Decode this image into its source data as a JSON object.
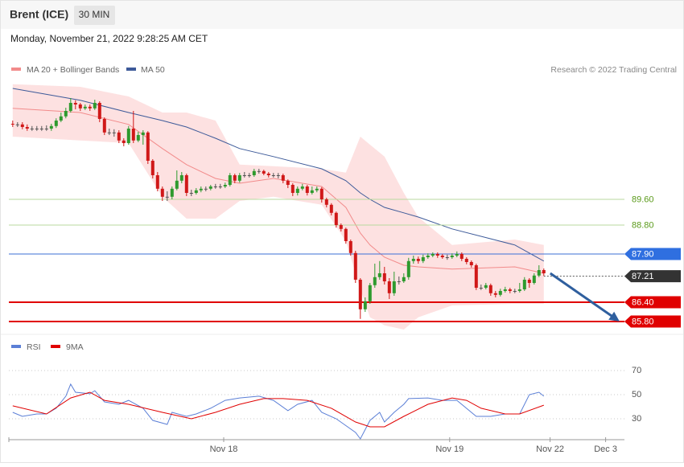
{
  "header": {
    "title": "Brent (ICE)",
    "interval": "30 MIN",
    "timestamp": "Monday, November 21, 2022 9:28:25 AM CET",
    "credit": "Research © 2022 Trading Central"
  },
  "chart_data": [
    {
      "type": "candlestick",
      "ylim": [
        85.3,
        94.2
      ],
      "xlim": [
        -0.8,
        126.7
      ],
      "up_color": "#2e9a2e",
      "down_color": "#d01818",
      "flat_color": "#555555",
      "open": [
        91.95,
        91.93,
        91.93,
        91.85,
        91.8,
        91.8,
        91.8,
        91.8,
        91.8,
        91.88,
        92.05,
        92.18,
        92.35,
        92.6,
        92.55,
        92.43,
        92.48,
        92.43,
        92.6,
        92.1,
        91.68,
        91.68,
        91.68,
        91.43,
        91.35,
        91.8,
        91.43,
        91.6,
        91.68,
        90.8,
        90.35,
        89.93,
        89.68,
        89.68,
        89.93,
        90.18,
        90.35,
        89.8,
        89.8,
        89.88,
        89.93,
        89.93,
        90.0,
        90.0,
        90.0,
        90.05,
        90.35,
        90.18,
        90.35,
        90.35,
        90.35,
        90.48,
        90.48,
        90.4,
        90.35,
        90.35,
        90.35,
        90.18,
        90.05,
        89.8,
        89.93,
        90.0,
        89.8,
        89.88,
        89.93,
        89.6,
        89.43,
        89.18,
        88.8,
        88.68,
        88.3,
        87.93,
        87.1,
        86.18,
        86.43,
        86.93,
        87.18,
        87.3,
        87.05,
        86.68,
        87.05,
        87.05,
        87.18,
        87.68,
        87.75,
        87.68,
        87.8,
        87.85,
        87.9,
        87.85,
        87.8,
        87.8,
        87.85,
        87.9,
        87.75,
        87.65,
        87.55,
        86.85,
        86.85,
        86.93,
        86.68,
        86.63,
        86.75,
        86.8,
        86.75,
        86.75,
        86.8,
        87.1,
        87.0,
        87.23,
        87.4
      ],
      "high": [
        92.05,
        92.0,
        92.0,
        91.93,
        91.88,
        91.88,
        91.88,
        91.9,
        91.95,
        92.12,
        92.3,
        92.45,
        92.75,
        92.68,
        92.6,
        92.55,
        92.55,
        92.7,
        92.65,
        92.15,
        91.8,
        91.78,
        91.75,
        91.5,
        91.88,
        92.35,
        91.7,
        91.75,
        91.72,
        90.85,
        90.45,
        90.0,
        89.85,
        90.0,
        90.5,
        90.45,
        90.4,
        89.9,
        89.95,
        90.0,
        90.0,
        90.05,
        90.08,
        90.08,
        90.12,
        90.42,
        90.4,
        90.42,
        90.45,
        90.42,
        90.55,
        90.55,
        90.52,
        90.45,
        90.42,
        90.42,
        90.4,
        90.22,
        90.1,
        90.0,
        90.08,
        90.05,
        90.0,
        90.0,
        89.98,
        89.65,
        89.48,
        89.22,
        88.85,
        88.72,
        88.35,
        88.0,
        87.15,
        86.55,
        87.0,
        87.6,
        87.68,
        87.5,
        87.15,
        87.35,
        87.2,
        87.3,
        87.78,
        87.85,
        87.82,
        87.88,
        87.92,
        87.95,
        87.95,
        87.9,
        87.88,
        87.92,
        87.98,
        87.95,
        87.8,
        87.7,
        87.6,
        86.95,
        87.0,
        86.98,
        86.75,
        86.82,
        86.88,
        86.85,
        86.82,
        87.0,
        87.18,
        87.15,
        87.3,
        87.55,
        87.45
      ],
      "low": [
        91.85,
        91.85,
        91.78,
        91.73,
        91.73,
        91.73,
        91.73,
        91.73,
        91.73,
        91.82,
        92.0,
        92.12,
        92.3,
        92.4,
        92.35,
        92.38,
        92.35,
        92.38,
        92.0,
        91.6,
        91.6,
        91.55,
        91.35,
        91.25,
        91.3,
        91.35,
        91.38,
        91.3,
        90.7,
        90.25,
        89.85,
        89.55,
        89.55,
        89.6,
        89.88,
        90.1,
        89.7,
        89.7,
        89.75,
        89.82,
        89.85,
        89.88,
        89.93,
        89.93,
        89.95,
        90.0,
        90.1,
        90.12,
        90.28,
        90.28,
        90.3,
        90.4,
        90.35,
        90.28,
        90.28,
        90.25,
        90.1,
        89.95,
        89.7,
        89.72,
        89.88,
        89.72,
        89.75,
        89.82,
        89.5,
        89.35,
        89.1,
        88.72,
        88.6,
        88.22,
        87.85,
        87.0,
        85.88,
        86.1,
        86.35,
        86.85,
        87.1,
        86.95,
        86.5,
        86.6,
        86.95,
        87.0,
        87.1,
        87.6,
        87.6,
        87.62,
        87.75,
        87.8,
        87.78,
        87.75,
        87.72,
        87.75,
        87.8,
        87.68,
        87.58,
        87.48,
        86.78,
        86.78,
        86.8,
        86.6,
        86.55,
        86.58,
        86.7,
        86.68,
        86.68,
        86.7,
        86.75,
        86.85,
        86.95,
        87.18,
        87.22
      ],
      "close": [
        91.93,
        91.93,
        91.85,
        91.8,
        91.8,
        91.8,
        91.8,
        91.8,
        91.88,
        92.05,
        92.18,
        92.35,
        92.6,
        92.55,
        92.43,
        92.48,
        92.43,
        92.6,
        92.1,
        91.68,
        91.68,
        91.68,
        91.43,
        91.35,
        91.8,
        91.43,
        91.6,
        91.68,
        90.8,
        90.35,
        89.93,
        89.68,
        89.68,
        89.93,
        90.18,
        90.35,
        89.8,
        89.8,
        89.88,
        89.93,
        89.93,
        90.0,
        90.0,
        90.0,
        90.05,
        90.35,
        90.18,
        90.35,
        90.35,
        90.35,
        90.48,
        90.48,
        90.4,
        90.35,
        90.35,
        90.35,
        90.18,
        90.05,
        89.8,
        89.93,
        90.0,
        89.8,
        89.88,
        89.93,
        89.6,
        89.43,
        89.18,
        88.8,
        88.68,
        88.3,
        87.93,
        87.1,
        86.18,
        86.43,
        86.93,
        87.18,
        87.3,
        87.05,
        86.68,
        87.05,
        87.05,
        87.18,
        87.68,
        87.75,
        87.68,
        87.8,
        87.85,
        87.9,
        87.85,
        87.8,
        87.8,
        87.85,
        87.9,
        87.75,
        87.65,
        87.55,
        86.85,
        86.85,
        86.93,
        86.68,
        86.63,
        86.75,
        86.8,
        86.75,
        86.75,
        86.8,
        87.1,
        87.0,
        87.23,
        87.4,
        87.3
      ],
      "indicator_x": [
        0,
        14,
        24,
        31,
        36,
        42,
        47,
        54,
        64,
        69,
        72,
        74,
        77,
        81,
        84,
        91,
        104,
        110
      ],
      "series": [
        {
          "name": "MA 20 + Bollinger Bands",
          "color": "#f28b8b",
          "band_color": "#fde1e1",
          "values": [
            92.43,
            92.3,
            91.93,
            91.18,
            90.68,
            90.25,
            90.1,
            90.25,
            90.0,
            89.35,
            88.55,
            88.18,
            87.8,
            87.55,
            87.5,
            87.43,
            87.5,
            87.3
          ],
          "upper": [
            93.18,
            93.1,
            92.8,
            92.3,
            92.3,
            92.05,
            90.68,
            90.63,
            90.55,
            90.43,
            91.55,
            91.3,
            90.93,
            89.8,
            89.05,
            88.18,
            88.35,
            88.18
          ],
          "lower": [
            91.55,
            91.43,
            91.35,
            89.68,
            89.0,
            89.0,
            89.55,
            89.68,
            89.43,
            88.3,
            86.8,
            85.93,
            85.68,
            85.55,
            85.93,
            86.3,
            86.35,
            86.35
          ]
        },
        {
          "name": "MA 50",
          "color": "#3d5a99",
          "values": [
            93.05,
            92.68,
            92.3,
            92.05,
            91.85,
            91.5,
            91.18,
            90.93,
            90.55,
            90.18,
            89.8,
            89.6,
            89.35,
            89.18,
            89.05,
            88.68,
            88.18,
            87.68
          ]
        }
      ],
      "levels": [
        {
          "value": 89.6,
          "label": "89.60",
          "line_color": "#b9d99f",
          "label_color": "#5a9a1a",
          "tag_color": null,
          "dashed": false
        },
        {
          "value": 88.8,
          "label": "88.80",
          "line_color": "#b9d99f",
          "label_color": "#5a9a1a",
          "tag_color": null,
          "dashed": false
        },
        {
          "value": 87.9,
          "label": "87.90",
          "line_color": "#3b6fd6",
          "label_color": "#ffffff",
          "tag_color": "#2f6fe0",
          "dashed": false
        },
        {
          "value": 87.21,
          "label": "87.21",
          "line_color": "#555555",
          "label_color": "#ffffff",
          "tag_color": "#333333",
          "dashed": true
        },
        {
          "value": 86.4,
          "label": "86.40",
          "line_color": "#e00000",
          "label_color": "#ffffff",
          "tag_color": "#e00000",
          "dashed": false
        },
        {
          "value": 85.8,
          "label": "85.80",
          "line_color": "#e00000",
          "label_color": "#ffffff",
          "tag_color": "#e00000",
          "dashed": false
        }
      ]
    },
    {
      "type": "line",
      "ylim": [
        12,
        92
      ],
      "xlim": [
        -0.8,
        126.7
      ],
      "yticks": [
        30,
        50,
        70
      ],
      "grid": true,
      "xticks": [
        {
          "value": 43.7,
          "label": "Nov 18"
        },
        {
          "value": 90.5,
          "label": "Nov 19"
        },
        {
          "value": 111.3,
          "label": "Nov 22"
        },
        {
          "value": 122.8,
          "label": "Dec 3"
        }
      ],
      "series": [
        {
          "name": "RSI",
          "color": "#5b7fd6",
          "x": [
            0,
            2,
            5,
            7,
            9,
            11,
            12,
            13,
            16,
            17,
            19,
            22,
            24,
            27,
            29,
            32,
            33,
            36,
            38,
            41,
            44,
            47,
            51,
            54,
            57,
            59,
            62,
            64,
            67,
            71,
            72,
            74,
            76,
            77,
            79,
            81,
            82,
            86,
            89,
            92,
            96,
            99,
            102,
            105,
            107,
            109,
            110
          ],
          "values": [
            35.3,
            32,
            34,
            34,
            38.7,
            48.7,
            58.7,
            52,
            50.7,
            53.3,
            44,
            42,
            45.3,
            38.7,
            28.7,
            25.3,
            35.3,
            32,
            34,
            38.7,
            45.3,
            47.3,
            48.7,
            45.3,
            36.7,
            42,
            45.3,
            35.3,
            30,
            18.7,
            13.3,
            28.7,
            35.3,
            27.3,
            35.3,
            42,
            46.7,
            47.3,
            45.3,
            45.3,
            32,
            32,
            34,
            34,
            50,
            52,
            48.7
          ]
        },
        {
          "name": "9MA",
          "color": "#e00000",
          "x": [
            0,
            7,
            12,
            16,
            19,
            24,
            31,
            37,
            42,
            47,
            52,
            56,
            61,
            66,
            71,
            74,
            77,
            81,
            86,
            91,
            94,
            97,
            102,
            105,
            110
          ],
          "values": [
            40.7,
            34,
            47.3,
            52,
            45.3,
            42,
            35.3,
            30,
            35.3,
            42,
            46.7,
            46.7,
            45.3,
            38.7,
            27.3,
            23.3,
            23.3,
            32,
            42,
            47.3,
            45.3,
            38.7,
            34,
            34,
            41.3
          ]
        }
      ]
    }
  ]
}
